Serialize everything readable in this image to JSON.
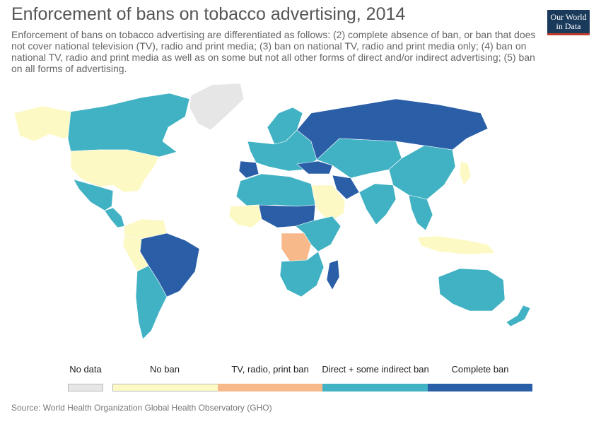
{
  "header": {
    "title": "Enforcement of bans on tobacco advertising, 2014",
    "subtitle": "Enforcement of bans on tobacco advertising are differentiated as follows: (2) complete absence of ban, or ban that does not cover national television (TV), radio and print media; (3) ban on national TV, radio and print media only; (4) ban on national TV, radio and print media as well as on some but not all other forms of direct and/or indirect advertising; (5) ban on all forms of advertising."
  },
  "logo": {
    "line1": "Our World",
    "line2": "in Data",
    "bg": "#1a3a5c",
    "accent": "#c0392b"
  },
  "legend": {
    "no_data": {
      "label": "No data",
      "color": "#e6e6e6"
    },
    "categories": [
      {
        "label": "No ban",
        "color": "#fdf9c4"
      },
      {
        "label": "TV, radio, print ban",
        "color": "#f7b98a"
      },
      {
        "label": "Direct + some indirect ban",
        "color": "#41b2c3"
      },
      {
        "label": "Complete ban",
        "color": "#2a5ea7"
      }
    ]
  },
  "regions": [
    {
      "name": "alaska",
      "level": "no_ban"
    },
    {
      "name": "canada",
      "level": "direct_indirect"
    },
    {
      "name": "greenland",
      "level": "no_data"
    },
    {
      "name": "usa",
      "level": "no_ban"
    },
    {
      "name": "mexico",
      "level": "direct_indirect"
    },
    {
      "name": "central-america",
      "level": "direct_indirect"
    },
    {
      "name": "colombia-venezuela",
      "level": "no_ban"
    },
    {
      "name": "brazil",
      "level": "complete"
    },
    {
      "name": "peru",
      "level": "no_ban"
    },
    {
      "name": "argentina-chile",
      "level": "direct_indirect"
    },
    {
      "name": "europe",
      "level": "direct_indirect"
    },
    {
      "name": "spain",
      "level": "complete"
    },
    {
      "name": "scandinavia",
      "level": "direct_indirect"
    },
    {
      "name": "russia",
      "level": "complete"
    },
    {
      "name": "turkey",
      "level": "complete"
    },
    {
      "name": "central-asia",
      "level": "direct_indirect"
    },
    {
      "name": "iran",
      "level": "complete"
    },
    {
      "name": "arabia",
      "level": "no_ban"
    },
    {
      "name": "north-africa",
      "level": "direct_indirect"
    },
    {
      "name": "sahel",
      "level": "complete"
    },
    {
      "name": "west-africa",
      "level": "no_ban"
    },
    {
      "name": "congo",
      "level": "tv_radio_print"
    },
    {
      "name": "east-africa",
      "level": "direct_indirect"
    },
    {
      "name": "southern-africa",
      "level": "direct_indirect"
    },
    {
      "name": "madagascar",
      "level": "complete"
    },
    {
      "name": "india",
      "level": "direct_indirect"
    },
    {
      "name": "china",
      "level": "direct_indirect"
    },
    {
      "name": "japan",
      "level": "no_ban"
    },
    {
      "name": "southeast-asia",
      "level": "direct_indirect"
    },
    {
      "name": "indonesia",
      "level": "no_ban"
    },
    {
      "name": "australia",
      "level": "direct_indirect"
    },
    {
      "name": "new-zealand",
      "level": "direct_indirect"
    }
  ],
  "level_colors": {
    "no_data": "#e6e6e6",
    "no_ban": "#fdf9c4",
    "tv_radio_print": "#f7b98a",
    "direct_indirect": "#41b2c3",
    "complete": "#2a5ea7"
  },
  "footer": {
    "source": "Source: World Health Organization Global Health Observatory (GHO)"
  }
}
